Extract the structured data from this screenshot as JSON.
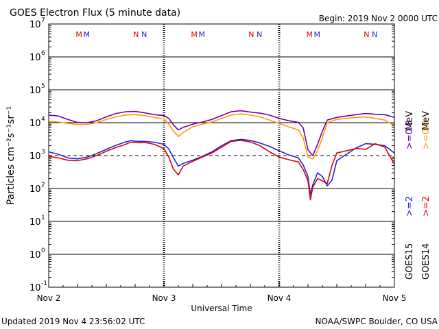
{
  "chart_data": {
    "type": "line",
    "title": "GOES Electron Flux (5 minute data)",
    "begin_label": "Begin: 2019 Nov 2 0000 UTC",
    "updated_label": "Updated 2019 Nov  4 23:56:02 UTC",
    "credit_label": "NOAA/SWPC Boulder, CO USA",
    "xlabel": "Universal Time",
    "ylabel": "Particles cm⁻²s⁻¹sr⁻¹",
    "yscale": "log",
    "ylim": [
      0.1,
      10000000
    ],
    "xlim": [
      0,
      72
    ],
    "x_unit": "hours since 2019 Nov 2 00:00 UTC",
    "x_ticks": [
      {
        "x": 0,
        "label": "Nov 2"
      },
      {
        "x": 24,
        "label": "Nov 3"
      },
      {
        "x": 48,
        "label": "Nov 4"
      },
      {
        "x": 72,
        "label": "Nov 5"
      }
    ],
    "y_ticks": [
      {
        "base": "10",
        "exp": "7",
        "value": 10000000
      },
      {
        "base": "10",
        "exp": "6",
        "value": 1000000
      },
      {
        "base": "10",
        "exp": "5",
        "value": 100000
      },
      {
        "base": "10",
        "exp": "4",
        "value": 10000
      },
      {
        "base": "10",
        "exp": "3",
        "value": 1000
      },
      {
        "base": "10",
        "exp": "2",
        "value": 100
      },
      {
        "base": "10",
        "exp": "1",
        "value": 10
      },
      {
        "base": "10",
        "exp": "0",
        "value": 1
      },
      {
        "base": "10",
        "exp": "-1",
        "value": 0.1
      }
    ],
    "threshold": {
      "value": 1000,
      "style": "dashed"
    },
    "markers": [
      {
        "x": 6.3,
        "text": "M",
        "color": "#dd0000"
      },
      {
        "x": 7.9,
        "text": "M",
        "color": "#2020e0"
      },
      {
        "x": 18.2,
        "text": "N",
        "color": "#dd0000"
      },
      {
        "x": 19.9,
        "text": "N",
        "color": "#2020e0"
      },
      {
        "x": 30.3,
        "text": "M",
        "color": "#dd0000"
      },
      {
        "x": 31.9,
        "text": "M",
        "color": "#2020e0"
      },
      {
        "x": 42.2,
        "text": "N",
        "color": "#dd0000"
      },
      {
        "x": 43.9,
        "text": "N",
        "color": "#2020e0"
      },
      {
        "x": 54.3,
        "text": "M",
        "color": "#dd0000"
      },
      {
        "x": 55.9,
        "text": "M",
        "color": "#2020e0"
      },
      {
        "x": 66.2,
        "text": "N",
        "color": "#dd0000"
      },
      {
        "x": 67.9,
        "text": "N",
        "color": "#2020e0"
      }
    ],
    "legend": {
      "placement": "right",
      "mev_label": "MeV",
      "entries": [
        {
          "text": ">=0.8",
          "color": "#7000a0"
        },
        {
          "text": ">=0.8",
          "color": "#ff9900"
        },
        {
          "text": ">=2",
          "color": "#2020e0"
        },
        {
          "text": ">=2",
          "color": "#dd0000"
        }
      ],
      "satellites": [
        "GOES15",
        "GOES14"
      ]
    },
    "series": [
      {
        "color": "#7000a0",
        "x": [
          0,
          2,
          4,
          6,
          8,
          10,
          12,
          14,
          16,
          18,
          20,
          22,
          24,
          25,
          26,
          27,
          28,
          30,
          32,
          34,
          36,
          38,
          40,
          42,
          44,
          46,
          48,
          50,
          52,
          53,
          54,
          55,
          56,
          57,
          58,
          60,
          62,
          64,
          66,
          68,
          70,
          72
        ],
        "y": [
          17000,
          16000,
          12500,
          10200,
          10000,
          11500,
          15000,
          19000,
          21500,
          22000,
          20000,
          17500,
          16500,
          13500,
          8500,
          6000,
          7200,
          9000,
          10500,
          12500,
          16500,
          21500,
          23000,
          21000,
          19500,
          17000,
          13500,
          11500,
          10200,
          7000,
          1500,
          1000,
          2200,
          5500,
          12000,
          14500,
          16000,
          17500,
          19000,
          18000,
          17500,
          14500
        ]
      },
      {
        "color": "#ff9900",
        "x": [
          0,
          2,
          4,
          6,
          8,
          10,
          12,
          14,
          16,
          18,
          20,
          22,
          24,
          25,
          26,
          27,
          28,
          30,
          32,
          34,
          36,
          38,
          40,
          42,
          44,
          46,
          48,
          50,
          52,
          53,
          54,
          55,
          56,
          57,
          58,
          60,
          62,
          64,
          66,
          68,
          70,
          72
        ],
        "y": [
          11000,
          10500,
          9500,
          8800,
          8900,
          10000,
          12500,
          15000,
          17000,
          17500,
          16500,
          14500,
          13000,
          9000,
          5500,
          3800,
          5000,
          7500,
          9000,
          10500,
          13500,
          17000,
          18500,
          17000,
          15000,
          12000,
          9500,
          7500,
          6000,
          3500,
          900,
          800,
          1400,
          3500,
          10000,
          12500,
          13500,
          14500,
          15000,
          13500,
          12000,
          8000
        ]
      },
      {
        "color": "#2020e0",
        "x": [
          0,
          2,
          4,
          6,
          8,
          10,
          12,
          14,
          16,
          17,
          18,
          19,
          20,
          22,
          24,
          25,
          26,
          27,
          28,
          30,
          32,
          34,
          36,
          38,
          40,
          42,
          44,
          46,
          48,
          50,
          52,
          53,
          54,
          54.5,
          55,
          56,
          57,
          58,
          59,
          60,
          62,
          64,
          66,
          68,
          70,
          72
        ],
        "y": [
          1300,
          1100,
          850,
          800,
          900,
          1150,
          1550,
          2050,
          2600,
          2850,
          2750,
          2700,
          2700,
          2550,
          2200,
          1600,
          850,
          480,
          580,
          720,
          950,
          1300,
          2000,
          2850,
          3100,
          2900,
          2400,
          1900,
          1400,
          1050,
          850,
          520,
          230,
          65,
          130,
          300,
          230,
          120,
          180,
          700,
          1100,
          1700,
          2300,
          2200,
          2000,
          1200
        ]
      },
      {
        "color": "#dd0000",
        "x": [
          0,
          2,
          4,
          6,
          8,
          10,
          12,
          14,
          16,
          17,
          18,
          19,
          20,
          22,
          24,
          25,
          26,
          27,
          28,
          30,
          32,
          34,
          36,
          38,
          40,
          42,
          44,
          46,
          48,
          50,
          52,
          53,
          54,
          54.5,
          55,
          56,
          57,
          58,
          59,
          60,
          62,
          64,
          66,
          68,
          70,
          72
        ],
        "y": [
          950,
          850,
          720,
          700,
          800,
          1000,
          1350,
          1750,
          2200,
          2550,
          2550,
          2450,
          2500,
          2200,
          1650,
          900,
          380,
          260,
          480,
          670,
          900,
          1200,
          1800,
          2700,
          2900,
          2600,
          2000,
          1300,
          900,
          750,
          640,
          380,
          170,
          45,
          110,
          200,
          170,
          140,
          500,
          1200,
          1400,
          1650,
          1550,
          2300,
          1800,
          550
        ]
      }
    ]
  }
}
